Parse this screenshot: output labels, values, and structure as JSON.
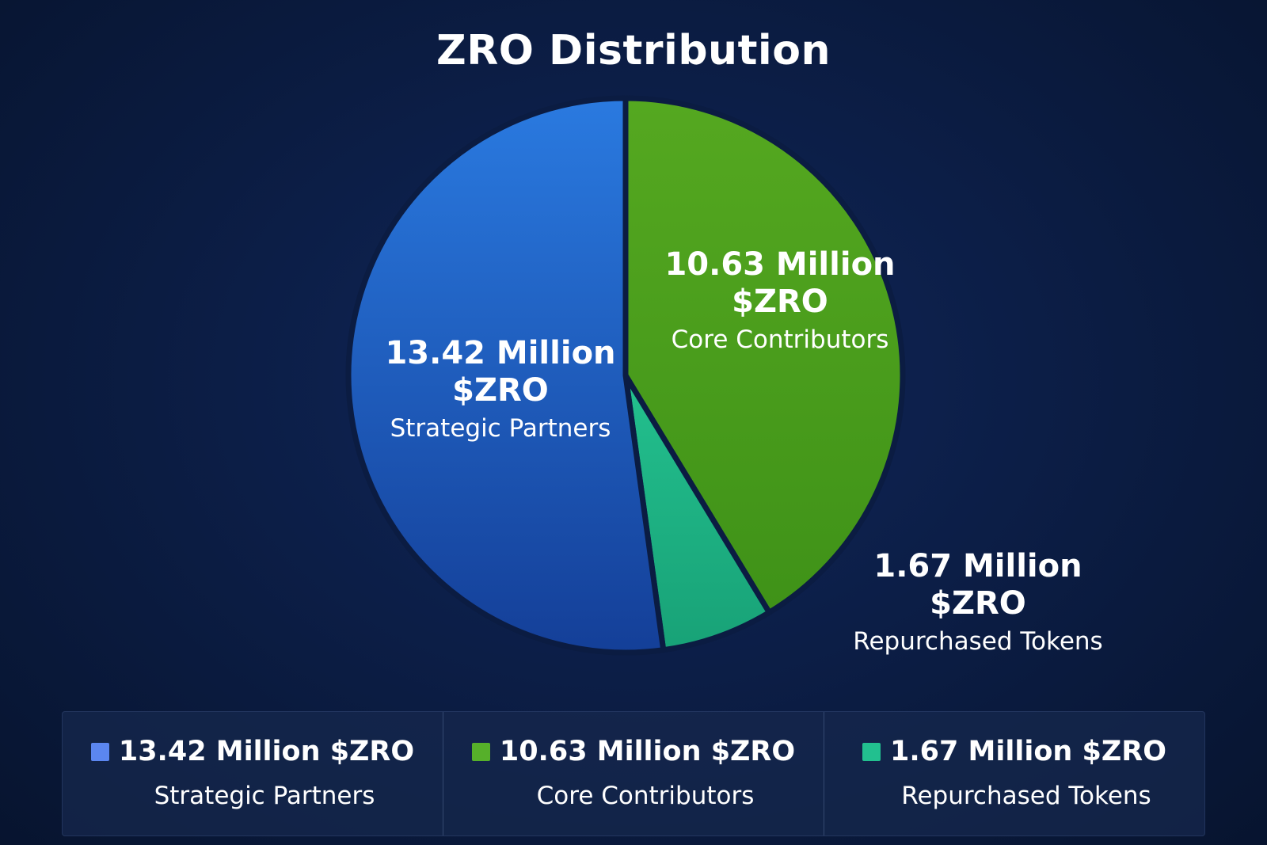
{
  "chart_data": {
    "type": "pie",
    "title": "ZRO Distribution",
    "slices": [
      {
        "amount_label": "13.42 Million",
        "unit_label": "$ZRO",
        "category": "Strategic Partners",
        "legend_label": "13.42 Million $ZRO",
        "value": 13.42,
        "color": "#1f5fd6",
        "swatch_color": "#5b86f0"
      },
      {
        "amount_label": "10.63 Million",
        "unit_label": "$ZRO",
        "category": "Core Contributors",
        "legend_label": "10.63 Million $ZRO",
        "value": 10.63,
        "color": "#4ea21d",
        "swatch_color": "#56b02a"
      },
      {
        "amount_label": "1.67 Million",
        "unit_label": "$ZRO",
        "category": "Repurchased Tokens",
        "legend_label": "1.67 Million $ZRO",
        "value": 1.67,
        "color": "#1fb587",
        "swatch_color": "#22c08f"
      }
    ]
  }
}
